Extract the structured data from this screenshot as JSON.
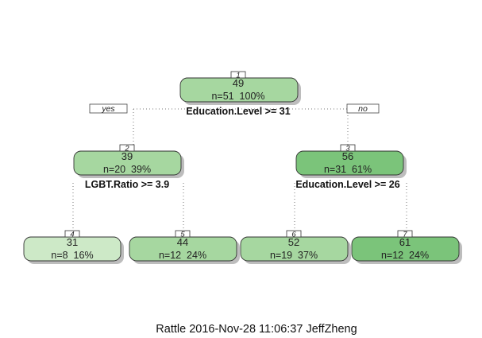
{
  "tree": {
    "nodes": [
      {
        "id": "1",
        "value": "49",
        "count": "n=51  100%",
        "fill": "#a6d7a0",
        "split": "Education.Level >= 31"
      },
      {
        "id": "2",
        "value": "39",
        "count": "n=20  39%",
        "fill": "#a6d7a0",
        "split": "LGBT.Ratio >= 3.9"
      },
      {
        "id": "3",
        "value": "56",
        "count": "n=31  61%",
        "fill": "#7bc47a",
        "split": "Education.Level >= 26"
      },
      {
        "id": "4",
        "value": "31",
        "count": "n=8  16%",
        "fill": "#cde9c7",
        "split": ""
      },
      {
        "id": "5",
        "value": "44",
        "count": "n=12  24%",
        "fill": "#a6d7a0",
        "split": ""
      },
      {
        "id": "6",
        "value": "52",
        "count": "n=19  37%",
        "fill": "#a6d7a0",
        "split": ""
      },
      {
        "id": "7",
        "value": "61",
        "count": "n=12  24%",
        "fill": "#7bc47a",
        "split": ""
      }
    ],
    "yes_label": "yes",
    "no_label": "no"
  },
  "footer": "Rattle 2016-Nov-28 11:06:37 JeffZheng"
}
